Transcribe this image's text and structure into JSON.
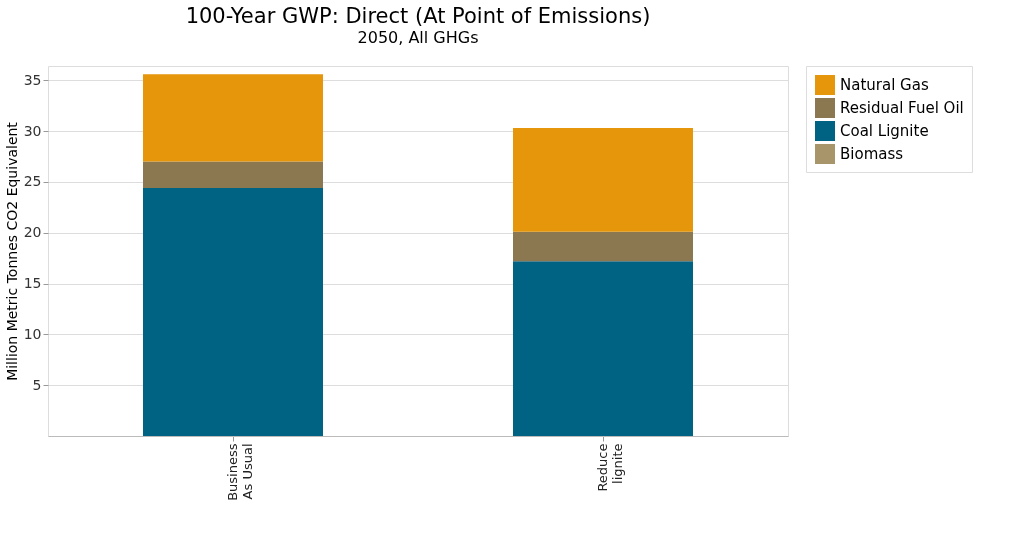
{
  "chart_data": {
    "type": "bar",
    "title": "100-Year GWP: Direct (At Point of Emissions)",
    "subtitle": "2050, All GHGs",
    "ylabel": "Million Metric Tonnes CO2 Equivalent",
    "categories": [
      "Business\nAs Usual",
      "Reduce\nlignite"
    ],
    "series": [
      {
        "name": "Biomass",
        "color": "#a8966a",
        "values": [
          0,
          0
        ]
      },
      {
        "name": "Coal Lignite",
        "color": "#006384",
        "values": [
          24.4,
          17.2
        ]
      },
      {
        "name": "Residual Fuel Oil",
        "color": "#8b7750",
        "values": [
          2.6,
          2.9
        ]
      },
      {
        "name": "Natural Gas",
        "color": "#e5960b",
        "values": [
          8.6,
          10.2
        ]
      }
    ],
    "stacked": true,
    "ylim": [
      0,
      36.4
    ],
    "yticks": [
      5,
      10,
      15,
      20,
      25,
      30,
      35
    ],
    "grid": "y",
    "legend": "top right"
  }
}
